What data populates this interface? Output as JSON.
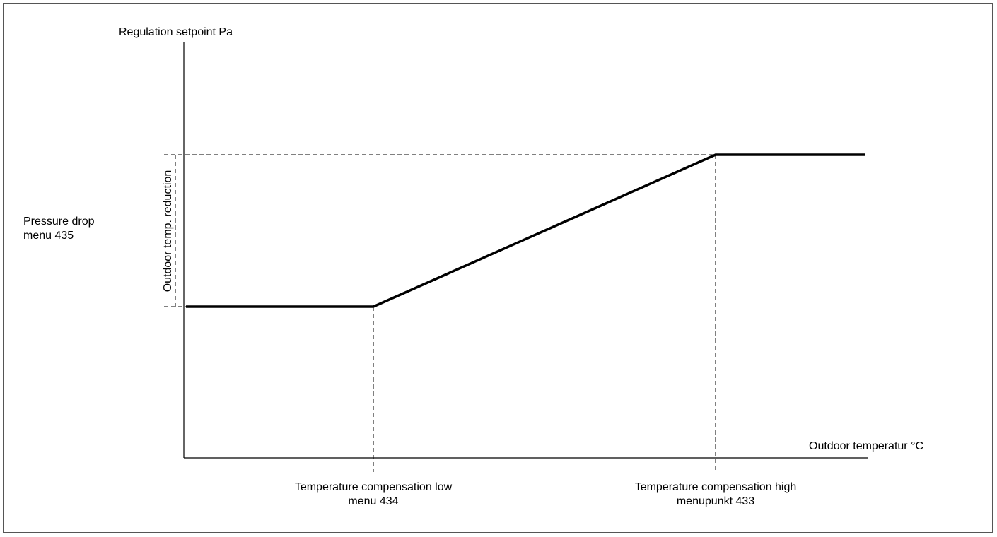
{
  "diagram": {
    "y_axis_label": "Regulation setpoint Pa",
    "x_axis_label": "Outdoor temperatur °C",
    "left_label": {
      "line1": "Pressure drop",
      "line2": "menu 435"
    },
    "vertical_label": "Outdoor temp. reduction",
    "low_point_label": {
      "line1": "Temperature compensation low",
      "line2": "menu 434"
    },
    "high_point_label": {
      "line1": "Temperature compensation high",
      "line2": "menupunkt 433"
    },
    "colors": {
      "line": "#000000",
      "frame": "#555555",
      "background": "#ffffff"
    }
  }
}
